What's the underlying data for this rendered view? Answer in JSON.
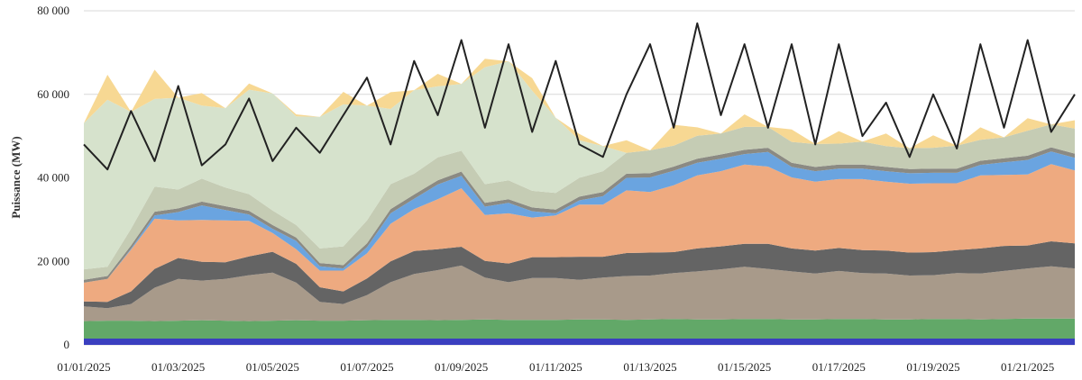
{
  "chart_data": {
    "type": "area",
    "ylabel": "Puissance (MW)",
    "ylim": [
      0,
      80000
    ],
    "yticks": [
      0,
      20000,
      40000,
      60000,
      80000
    ],
    "ytick_labels": [
      "0",
      "20 000",
      "40 000",
      "60 000",
      "80 000"
    ],
    "x_start": "2025-01-01",
    "x_end": "2025-01-22",
    "xticks": [
      "01/01/2025",
      "01/03/2025",
      "01/05/2025",
      "01/07/2025",
      "01/09/2025",
      "01/11/2025",
      "01/13/2025",
      "01/15/2025",
      "01/17/2025",
      "01/19/2025",
      "01/21/2025"
    ],
    "grid": true,
    "legend": "none",
    "x": [
      "2025-01-01",
      "2025-01-01",
      "2025-01-02",
      "2025-01-02",
      "2025-01-03",
      "2025-01-03",
      "2025-01-04",
      "2025-01-04",
      "2025-01-05",
      "2025-01-05",
      "2025-01-06",
      "2025-01-06",
      "2025-01-07",
      "2025-01-07",
      "2025-01-08",
      "2025-01-08",
      "2025-01-09",
      "2025-01-09",
      "2025-01-10",
      "2025-01-10",
      "2025-01-11",
      "2025-01-11",
      "2025-01-12",
      "2025-01-12",
      "2025-01-13",
      "2025-01-13",
      "2025-01-14",
      "2025-01-14",
      "2025-01-15",
      "2025-01-15",
      "2025-01-16",
      "2025-01-16",
      "2025-01-17",
      "2025-01-17",
      "2025-01-18",
      "2025-01-18",
      "2025-01-19",
      "2025-01-19",
      "2025-01-20",
      "2025-01-20",
      "2025-01-21",
      "2025-01-21",
      "2025-01-22"
    ],
    "stack_series": [
      {
        "color": "#3a3fbf",
        "values": [
          1500,
          1500,
          1500,
          1500,
          1500,
          1500,
          1500,
          1500,
          1500,
          1500,
          1500,
          1500,
          1500,
          1500,
          1500,
          1500,
          1500,
          1500,
          1500,
          1500,
          1500,
          1500,
          1500,
          1500,
          1500,
          1500,
          1500,
          1500,
          1500,
          1500,
          1500,
          1500,
          1500,
          1500,
          1500,
          1500,
          1500,
          1500,
          1500,
          1500,
          1500,
          1500,
          1500
        ]
      },
      {
        "color": "#62a868",
        "values": [
          4200,
          4300,
          4300,
          4200,
          4300,
          4400,
          4300,
          4200,
          4300,
          4400,
          4300,
          4300,
          4400,
          4500,
          4500,
          4400,
          4500,
          4600,
          4500,
          4500,
          4500,
          4600,
          4600,
          4500,
          4600,
          4700,
          4600,
          4600,
          4700,
          4700,
          4600,
          4600,
          4700,
          4700,
          4600,
          4600,
          4700,
          4700,
          4600,
          4700,
          4800,
          4800,
          4800
        ]
      },
      {
        "color": "#a89a8a",
        "values": [
          3500,
          3000,
          4000,
          8000,
          10000,
          9500,
          10000,
          11000,
          11500,
          9000,
          4500,
          4000,
          6000,
          9000,
          11000,
          12000,
          13000,
          10000,
          9000,
          10000,
          10000,
          9500,
          10000,
          10500,
          10500,
          11000,
          11500,
          12000,
          12500,
          12000,
          11500,
          11000,
          11500,
          11000,
          11000,
          10500,
          10500,
          11000,
          11000,
          11500,
          12000,
          12500,
          12000
        ]
      },
      {
        "color": "#646464",
        "values": [
          1200,
          1500,
          3000,
          4500,
          5000,
          4500,
          4000,
          4500,
          5000,
          4500,
          3500,
          3000,
          4000,
          5000,
          5500,
          5000,
          4500,
          4000,
          4500,
          5000,
          5000,
          5500,
          5000,
          5500,
          5500,
          5000,
          5500,
          5500,
          5500,
          6000,
          5500,
          5500,
          5500,
          5500,
          5500,
          5500,
          5500,
          5500,
          6000,
          6000,
          5500,
          6000,
          6000
        ]
      },
      {
        "color": "#eeaa80",
        "values": [
          4500,
          5500,
          10000,
          12000,
          9000,
          10000,
          10000,
          8500,
          4500,
          3500,
          4000,
          5000,
          6000,
          9000,
          10000,
          12000,
          14000,
          11000,
          12000,
          9500,
          10000,
          12500,
          12500,
          15000,
          14500,
          16000,
          17500,
          18000,
          19000,
          18500,
          17000,
          16500,
          16500,
          17000,
          16500,
          16500,
          16500,
          16000,
          17500,
          17000,
          17000,
          18500,
          17500
        ]
      },
      {
        "color": "#6aa4e0",
        "values": [
          0,
          0,
          200,
          800,
          2000,
          3500,
          2500,
          1500,
          1000,
          2000,
          1000,
          500,
          1500,
          2500,
          2500,
          3500,
          3000,
          2000,
          2500,
          1500,
          500,
          1000,
          2000,
          3000,
          3500,
          3500,
          3000,
          3000,
          2500,
          3500,
          2500,
          2500,
          2500,
          2500,
          2500,
          2500,
          2500,
          2500,
          2500,
          3000,
          3500,
          3000,
          3000
        ]
      },
      {
        "color": "#8b8a83",
        "values": [
          700,
          700,
          800,
          900,
          900,
          900,
          900,
          900,
          900,
          800,
          800,
          800,
          900,
          1000,
          1000,
          1000,
          1000,
          900,
          900,
          900,
          900,
          900,
          1000,
          1000,
          1000,
          1000,
          1000,
          1000,
          1000,
          1000,
          1000,
          1000,
          1000,
          1000,
          1000,
          1000,
          1000,
          1000,
          1000,
          1000,
          1000,
          1000,
          1000
        ]
      },
      {
        "color": "#c5ccb4",
        "values": [
          2500,
          2200,
          4000,
          6000,
          4500,
          5500,
          4500,
          4000,
          3500,
          3000,
          3500,
          4500,
          5500,
          6000,
          5000,
          5500,
          5000,
          4500,
          4500,
          4000,
          4000,
          4500,
          5000,
          5000,
          5500,
          5000,
          5500,
          5000,
          5500,
          5000,
          5000,
          5500,
          5000,
          5500,
          5000,
          5000,
          5000,
          5500,
          5000,
          5000,
          6000,
          5500,
          6000
        ]
      },
      {
        "color": "#d6e2cc",
        "values": [
          35000,
          40000,
          28000,
          21000,
          22000,
          17500,
          19000,
          25000,
          28000,
          26000,
          31500,
          34000,
          27500,
          18000,
          20000,
          17000,
          16000,
          28000,
          28500,
          24000,
          18000,
          9000,
          6000,
          0,
          0,
          0,
          0,
          0,
          0,
          0,
          0,
          0,
          0,
          0,
          0,
          0,
          0,
          0,
          0,
          0,
          0,
          0,
          0
        ]
      },
      {
        "color": "#f7d893",
        "values": [
          0,
          6000,
          0,
          7000,
          0,
          3000,
          0,
          1500,
          0,
          500,
          0,
          3000,
          0,
          4000,
          0,
          3000,
          0,
          2000,
          0,
          3000,
          0,
          1500,
          0,
          3000,
          0,
          5000,
          2000,
          0,
          3000,
          0,
          3000,
          0,
          3000,
          0,
          3000,
          0,
          3000,
          0,
          3000,
          0,
          3000,
          0,
          2000
        ]
      }
    ],
    "line_series": {
      "color": "#222222",
      "values": [
        48000,
        42000,
        56000,
        44000,
        62000,
        43000,
        48000,
        59000,
        44000,
        52000,
        46000,
        55000,
        64000,
        48000,
        68000,
        55000,
        73000,
        52000,
        72000,
        51000,
        68000,
        48000,
        45000,
        60000,
        72000,
        52000,
        77000,
        55000,
        72000,
        52000,
        72000,
        48000,
        72000,
        50000,
        58000,
        45000,
        60000,
        47000,
        72000,
        52000,
        73000,
        51000,
        60000
      ]
    }
  }
}
